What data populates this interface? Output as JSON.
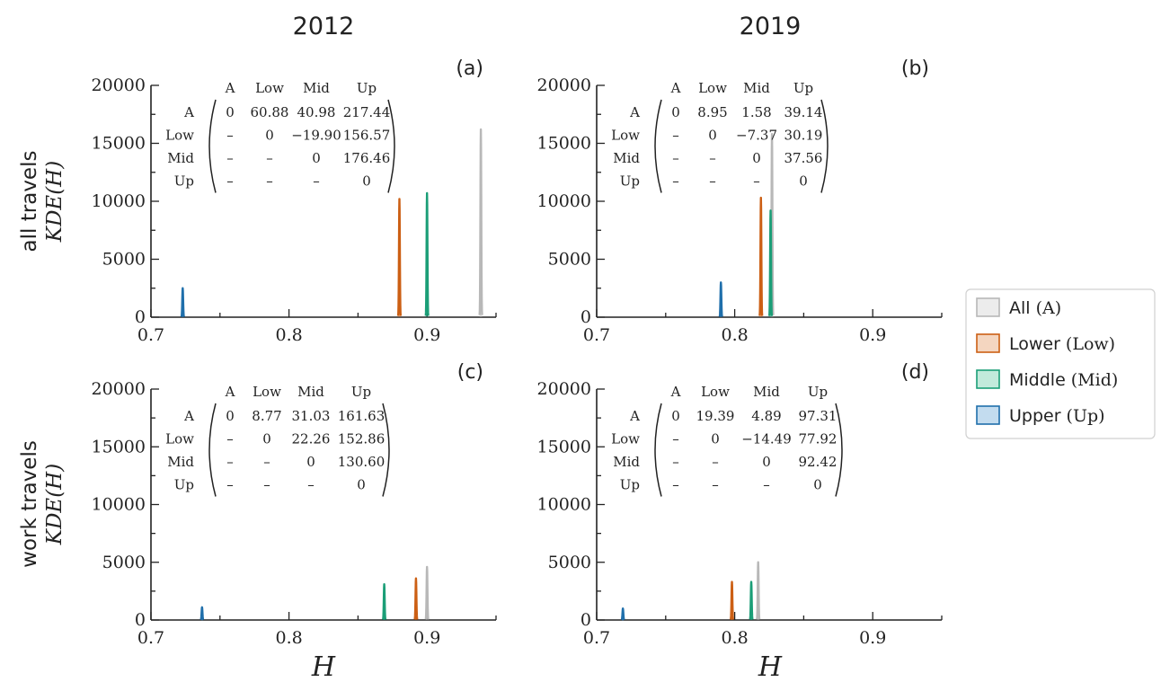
{
  "figure": {
    "col_titles": [
      "2012",
      "2019"
    ],
    "row_labels": [
      {
        "line1": "all travels",
        "line2": "KDE(H)"
      },
      {
        "line1": "work travels",
        "line2": "KDE(H)"
      }
    ],
    "xlabel": "H"
  },
  "legend": {
    "items": [
      {
        "name": "All",
        "abbr": "(A)",
        "color": "#b8b8b8",
        "fill": "#ececec"
      },
      {
        "name": "Lower",
        "abbr": "(Low)",
        "color": "#cc5f14",
        "fill": "#f4d6c0"
      },
      {
        "name": "Middle",
        "abbr": "(Mid)",
        "color": "#1b9e77",
        "fill": "#c2eadb"
      },
      {
        "name": "Upper",
        "abbr": "(Up)",
        "color": "#1f6fab",
        "fill": "#c3dcef"
      }
    ]
  },
  "chart_data": [
    {
      "type": "area",
      "panel": "(a)",
      "xlim": [
        0.7,
        0.95
      ],
      "ylim": [
        0,
        20000
      ],
      "xticks": [
        "0.7",
        "0.8",
        "0.9"
      ],
      "yticks": [
        "0",
        "5000",
        "10000",
        "15000",
        "20000"
      ],
      "series": [
        {
          "name": "All",
          "color": "#b8b8b8",
          "peak_x": 0.939,
          "peak_y": 16200
        },
        {
          "name": "Lower",
          "color": "#cc5f14",
          "peak_x": 0.88,
          "peak_y": 10200
        },
        {
          "name": "Middle",
          "color": "#1b9e77",
          "peak_x": 0.9,
          "peak_y": 10700
        },
        {
          "name": "Upper",
          "color": "#1f6fab",
          "peak_x": 0.723,
          "peak_y": 2500
        }
      ],
      "matrix": {
        "headers": [
          "A",
          "Low",
          "Mid",
          "Up"
        ],
        "rows": [
          [
            "A",
            "0",
            "60.88",
            "40.98",
            "217.44"
          ],
          [
            "Low",
            "–",
            "0",
            "−19.90",
            "156.57"
          ],
          [
            "Mid",
            "–",
            "–",
            "0",
            "176.46"
          ],
          [
            "Up",
            "–",
            "–",
            "–",
            "0"
          ]
        ]
      }
    },
    {
      "type": "area",
      "panel": "(b)",
      "xlim": [
        0.7,
        0.95
      ],
      "ylim": [
        0,
        20000
      ],
      "xticks": [
        "0.7",
        "0.8",
        "0.9"
      ],
      "yticks": [
        "0",
        "5000",
        "10000",
        "15000",
        "20000"
      ],
      "series": [
        {
          "name": "All",
          "color": "#b8b8b8",
          "peak_x": 0.827,
          "peak_y": 15800
        },
        {
          "name": "Lower",
          "color": "#cc5f14",
          "peak_x": 0.819,
          "peak_y": 10300
        },
        {
          "name": "Middle",
          "color": "#1b9e77",
          "peak_x": 0.826,
          "peak_y": 9200
        },
        {
          "name": "Upper",
          "color": "#1f6fab",
          "peak_x": 0.79,
          "peak_y": 3000
        }
      ],
      "matrix": {
        "headers": [
          "A",
          "Low",
          "Mid",
          "Up"
        ],
        "rows": [
          [
            "A",
            "0",
            "8.95",
            "1.58",
            "39.14"
          ],
          [
            "Low",
            "–",
            "0",
            "−7.37",
            "30.19"
          ],
          [
            "Mid",
            "–",
            "–",
            "0",
            "37.56"
          ],
          [
            "Up",
            "–",
            "–",
            "–",
            "0"
          ]
        ]
      }
    },
    {
      "type": "area",
      "panel": "(c)",
      "xlim": [
        0.7,
        0.95
      ],
      "ylim": [
        0,
        20000
      ],
      "xticks": [
        "0.7",
        "0.8",
        "0.9"
      ],
      "yticks": [
        "0",
        "5000",
        "10000",
        "15000",
        "20000"
      ],
      "series": [
        {
          "name": "All",
          "color": "#b8b8b8",
          "peak_x": 0.9,
          "peak_y": 4600
        },
        {
          "name": "Lower",
          "color": "#cc5f14",
          "peak_x": 0.892,
          "peak_y": 3600
        },
        {
          "name": "Middle",
          "color": "#1b9e77",
          "peak_x": 0.869,
          "peak_y": 3100
        },
        {
          "name": "Upper",
          "color": "#1f6fab",
          "peak_x": 0.737,
          "peak_y": 1100
        }
      ],
      "matrix": {
        "headers": [
          "A",
          "Low",
          "Mid",
          "Up"
        ],
        "rows": [
          [
            "A",
            "0",
            "8.77",
            "31.03",
            "161.63"
          ],
          [
            "Low",
            "–",
            "0",
            "22.26",
            "152.86"
          ],
          [
            "Mid",
            "–",
            "–",
            "0",
            "130.60"
          ],
          [
            "Up",
            "–",
            "–",
            "–",
            "0"
          ]
        ]
      }
    },
    {
      "type": "area",
      "panel": "(d)",
      "xlim": [
        0.7,
        0.95
      ],
      "ylim": [
        0,
        20000
      ],
      "xticks": [
        "0.7",
        "0.8",
        "0.9"
      ],
      "yticks": [
        "0",
        "5000",
        "10000",
        "15000",
        "20000"
      ],
      "series": [
        {
          "name": "All",
          "color": "#b8b8b8",
          "peak_x": 0.817,
          "peak_y": 5000
        },
        {
          "name": "Lower",
          "color": "#cc5f14",
          "peak_x": 0.798,
          "peak_y": 3300
        },
        {
          "name": "Middle",
          "color": "#1b9e77",
          "peak_x": 0.812,
          "peak_y": 3300
        },
        {
          "name": "Upper",
          "color": "#1f6fab",
          "peak_x": 0.719,
          "peak_y": 1000
        }
      ],
      "matrix": {
        "headers": [
          "A",
          "Low",
          "Mid",
          "Up"
        ],
        "rows": [
          [
            "A",
            "0",
            "19.39",
            "4.89",
            "97.31"
          ],
          [
            "Low",
            "–",
            "0",
            "−14.49",
            "77.92"
          ],
          [
            "Mid",
            "–",
            "–",
            "0",
            "92.42"
          ],
          [
            "Up",
            "–",
            "–",
            "–",
            "0"
          ]
        ]
      }
    }
  ]
}
